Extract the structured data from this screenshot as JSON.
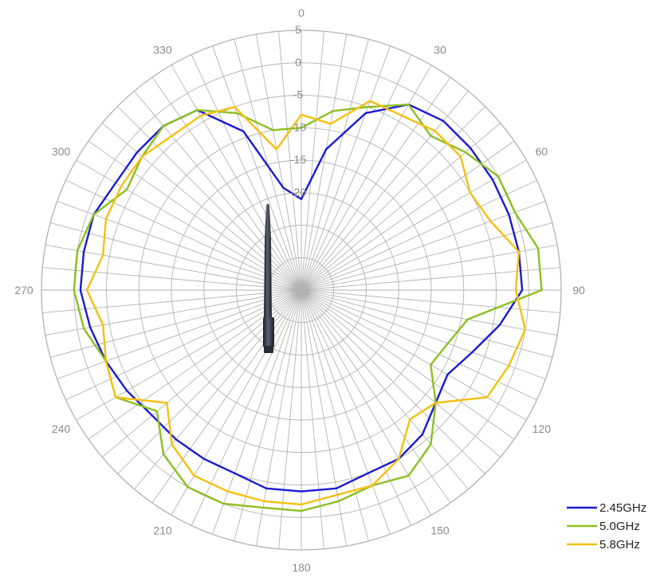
{
  "chart_data": {
    "type": "polar-line",
    "title": "",
    "theta_unit": "degrees",
    "theta_direction": "clockwise",
    "theta_zero": "top",
    "angle_ticks": [
      0,
      30,
      60,
      90,
      120,
      150,
      180,
      210,
      240,
      270,
      300,
      330
    ],
    "angle_tick_labels": [
      "0",
      "30",
      "60",
      "90",
      "120",
      "150",
      "180",
      "210",
      "240",
      "270",
      "300",
      "330"
    ],
    "radial_ticks": [
      5,
      0,
      -5,
      -10,
      -15,
      -20
    ],
    "radial_tick_labels": [
      "5",
      "0",
      "-5",
      "-10",
      "-15",
      "-20"
    ],
    "rlim": [
      -35,
      5
    ],
    "radial_grid_angle_step": 5,
    "grid": true,
    "legend_position": "bottom-right",
    "theta": [
      0,
      10,
      20,
      30,
      40,
      50,
      60,
      70,
      80,
      90,
      100,
      110,
      120,
      130,
      140,
      150,
      160,
      170,
      180,
      190,
      200,
      210,
      220,
      230,
      240,
      250,
      260,
      270,
      280,
      290,
      300,
      310,
      320,
      330,
      340,
      350
    ],
    "series": [
      {
        "name": "2.45GHz",
        "color": "#1a1ad0",
        "values": [
          -21,
          -13,
          -6,
          -2,
          -1,
          -1,
          -1,
          -1,
          -1,
          -1,
          -4,
          -7,
          -9,
          -8,
          -6,
          -5,
          -5,
          -4,
          -4,
          -4,
          -5,
          -5,
          -5,
          -5,
          -4,
          -3,
          -2,
          -1,
          -1,
          -1,
          -2,
          -2,
          -2,
          -3,
          -9,
          -19
        ]
      },
      {
        "name": "5.0GHz",
        "color": "#8cc020",
        "values": [
          -10,
          -7,
          -5,
          -2,
          -4,
          -2,
          0,
          0,
          2,
          2,
          -9,
          -11,
          -12,
          -8,
          -4,
          -2,
          -3,
          -2,
          -1,
          -1,
          0,
          0,
          -2,
          -6,
          -2,
          -3,
          -1,
          0,
          0,
          -1,
          -4,
          -3,
          -2,
          -3,
          -6,
          -10
        ]
      },
      {
        "name": "5.8GHz",
        "color": "#f5c010",
        "values": [
          -8,
          -9,
          -4,
          -4,
          -3,
          -3,
          -5,
          -4,
          -1,
          -2,
          0,
          -1,
          -2,
          -8,
          -9,
          -5,
          -3,
          -3,
          -2,
          -2,
          -2,
          -2,
          -4,
          -8,
          -2,
          -3,
          -4,
          -2,
          -4,
          -3,
          -3,
          -3,
          -4,
          -4,
          -5,
          -13
        ]
      }
    ],
    "image_decoration": "antenna-image"
  }
}
